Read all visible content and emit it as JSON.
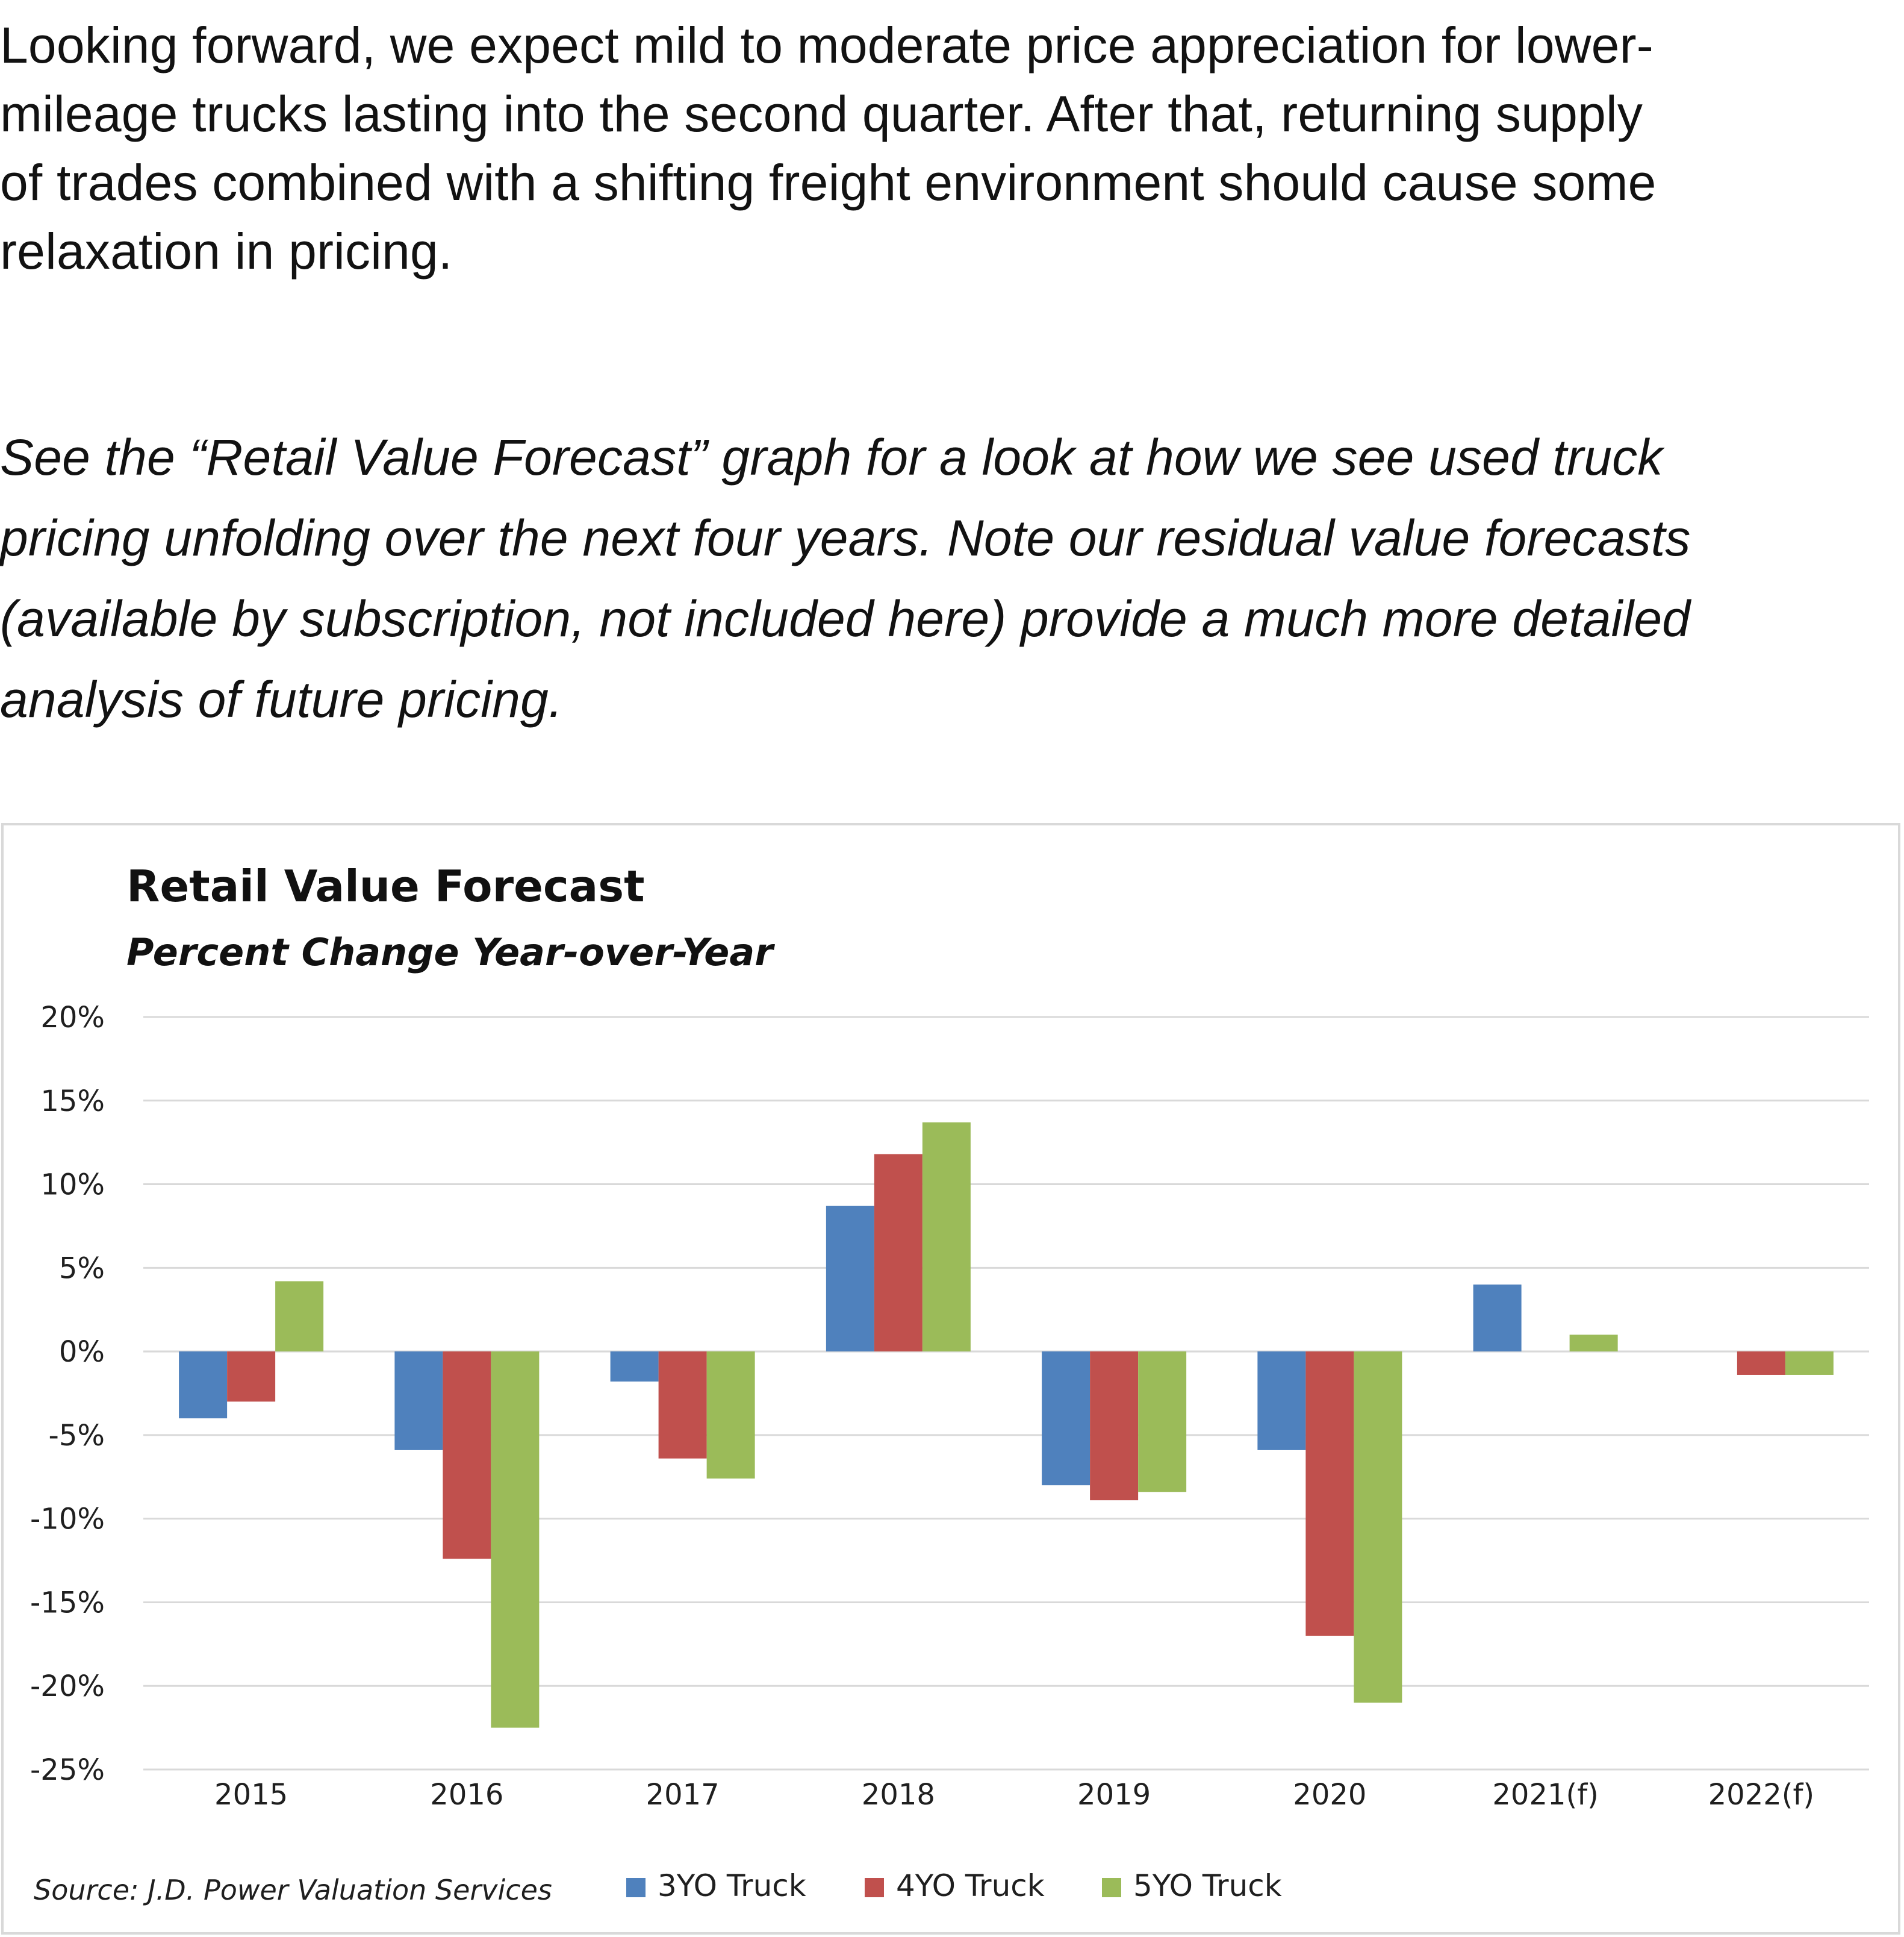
{
  "article": {
    "paragraph_1": [
      "Looking forward, we expect mild to moderate price appreciation for lower-",
      "mileage trucks lasting into the second quarter. After that, returning supply",
      "of trades combined with a shifting freight environment should cause some",
      "relaxation in pricing."
    ],
    "paragraph_2": [
      "See the “Retail Value Forecast” graph for a look at how we see used truck",
      "pricing unfolding over the next four years. Note our residual value forecasts",
      "(available by subscription, not included here) provide a much more detailed",
      "analysis of future pricing."
    ]
  },
  "chart_data": {
    "type": "bar",
    "title": "Retail Value Forecast",
    "subtitle": "Percent Change Year-over-Year",
    "source": "Source: J.D. Power Valuation Services",
    "xlabel": "",
    "ylabel": "",
    "categories": [
      "2015",
      "2016",
      "2017",
      "2018",
      "2019",
      "2020",
      "2021(f)",
      "2022(f)"
    ],
    "y_ticks": [
      "20%",
      "15%",
      "10%",
      "5%",
      "0%",
      "-5%",
      "-10%",
      "-15%",
      "-20%",
      "-25%"
    ],
    "ylim": [
      -25,
      20
    ],
    "grid": true,
    "legend_position": "bottom",
    "series": [
      {
        "name": "3YO Truck",
        "color": "#4f81bd",
        "values": [
          -4.0,
          -5.9,
          -1.8,
          8.7,
          -8.0,
          -5.9,
          4.0,
          0
        ]
      },
      {
        "name": "4YO Truck",
        "color": "#c0504d",
        "values": [
          -3.0,
          -12.4,
          -6.4,
          11.8,
          -8.9,
          -17.0,
          0,
          -1.4
        ]
      },
      {
        "name": "5YO Truck",
        "color": "#9bbb59",
        "values": [
          4.2,
          -22.5,
          -7.6,
          13.7,
          -8.4,
          -21.0,
          1.0,
          -1.4
        ]
      }
    ]
  }
}
